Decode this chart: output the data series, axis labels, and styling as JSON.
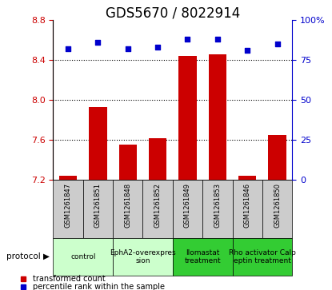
{
  "title": "GDS5670 / 8022914",
  "samples": [
    "GSM1261847",
    "GSM1261851",
    "GSM1261848",
    "GSM1261852",
    "GSM1261849",
    "GSM1261853",
    "GSM1261846",
    "GSM1261850"
  ],
  "transformed_count": [
    7.24,
    7.93,
    7.55,
    7.62,
    8.44,
    8.46,
    7.24,
    7.65
  ],
  "percentile_rank": [
    82,
    86,
    82,
    83,
    88,
    88,
    81,
    85
  ],
  "ylim_left": [
    7.2,
    8.8
  ],
  "yticks_left": [
    7.2,
    7.6,
    8.0,
    8.4,
    8.8
  ],
  "ylim_right": [
    0,
    100
  ],
  "yticks_right": [
    0,
    25,
    50,
    75,
    100
  ],
  "bar_color": "#cc0000",
  "dot_color": "#0000cc",
  "bar_bottom": 7.2,
  "protocol_groups": [
    {
      "label": "control",
      "start": 0,
      "end": 2,
      "color": "#ccffcc"
    },
    {
      "label": "EphA2-overexpres\nsion",
      "start": 2,
      "end": 4,
      "color": "#ccffcc"
    },
    {
      "label": "Ilomastat\ntreatment",
      "start": 4,
      "end": 6,
      "color": "#33cc33"
    },
    {
      "label": "Rho activator Calp\neptin treatment",
      "start": 6,
      "end": 8,
      "color": "#33cc33"
    }
  ],
  "legend_items": [
    {
      "label": "transformed count",
      "color": "#cc0000"
    },
    {
      "label": "percentile rank within the sample",
      "color": "#0000cc"
    }
  ],
  "protocol_label": "protocol",
  "left_tick_color": "#cc0000",
  "right_tick_color": "#0000cc",
  "title_fontsize": 12,
  "tick_fontsize": 8,
  "sample_box_color": "#cccccc",
  "grid_yticks": [
    7.6,
    8.0,
    8.4
  ]
}
